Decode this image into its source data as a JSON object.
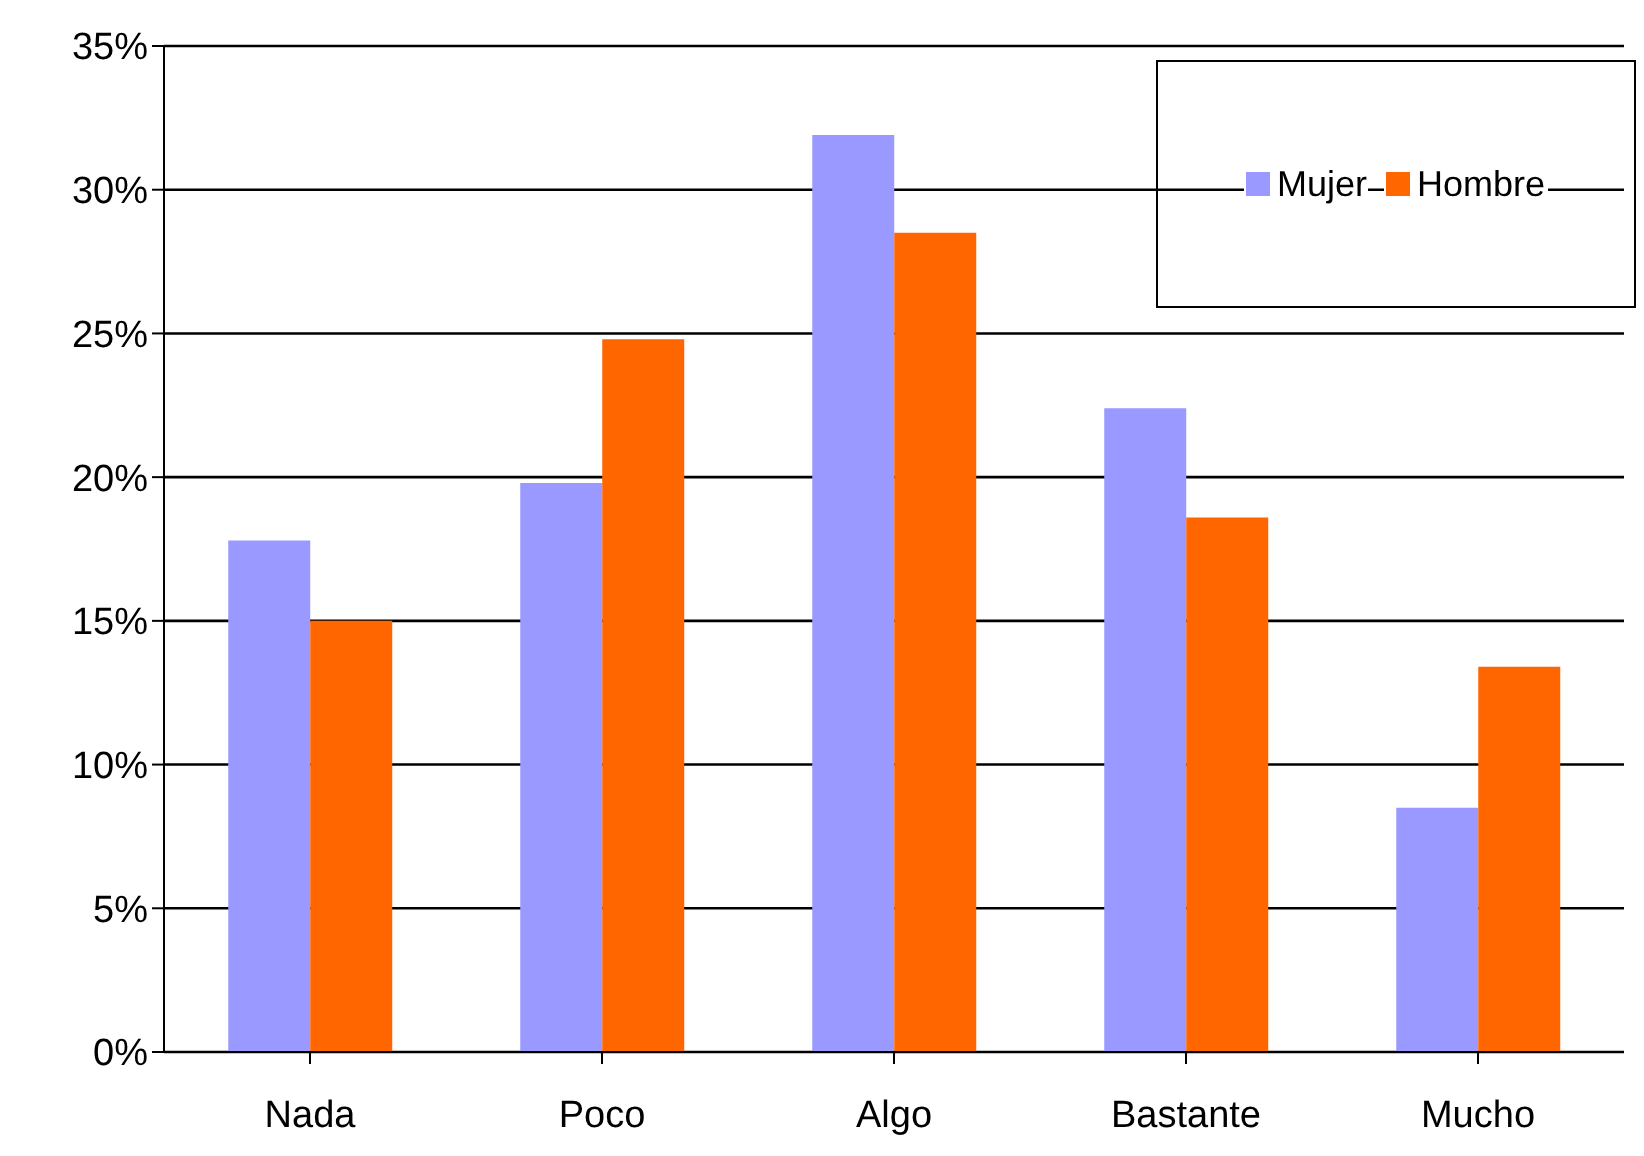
{
  "chart_data": {
    "type": "bar",
    "categories": [
      "Nada",
      "Poco",
      "Algo",
      "Bastante",
      "Mucho"
    ],
    "series": [
      {
        "name": "Mujer",
        "color": "#9999ff",
        "values": [
          17.8,
          19.8,
          31.9,
          22.4,
          8.5
        ]
      },
      {
        "name": "Hombre",
        "color": "#ff6600",
        "values": [
          15.0,
          24.8,
          28.5,
          18.6,
          13.4
        ]
      }
    ],
    "ylim": [
      0,
      35
    ],
    "yticks": [
      {
        "value": 0,
        "label": "0%"
      },
      {
        "value": 5,
        "label": "5%"
      },
      {
        "value": 10,
        "label": "10%"
      },
      {
        "value": 15,
        "label": "15%"
      },
      {
        "value": 20,
        "label": "20%"
      },
      {
        "value": 25,
        "label": "25%"
      },
      {
        "value": 30,
        "label": "30%"
      },
      {
        "value": 35,
        "label": "35%"
      }
    ],
    "grid": "y",
    "legend": "top right"
  }
}
